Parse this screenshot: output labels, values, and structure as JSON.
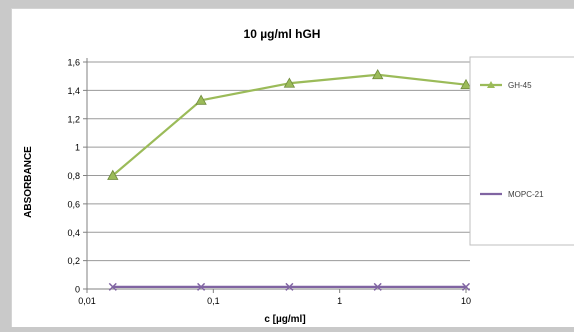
{
  "chart_data": {
    "type": "line",
    "title": "10 µg/ml hGH",
    "xlabel": "c [µg/ml]",
    "ylabel": "ABSORBANCE",
    "x_scale": "log",
    "xlim": [
      0.01,
      10
    ],
    "ylim": [
      0,
      1.6
    ],
    "x_ticks": [
      "0,01",
      "0,1",
      "1",
      "10"
    ],
    "y_ticks": [
      "0",
      "0,2",
      "0,4",
      "0,6",
      "0,8",
      "1",
      "1,2",
      "1,4",
      "1,6"
    ],
    "y_tick_values": [
      0,
      0.2,
      0.4,
      0.6,
      0.8,
      1.0,
      1.2,
      1.4,
      1.6
    ],
    "x_tick_values": [
      0.01,
      0.1,
      1,
      10
    ],
    "grid": true,
    "legend_position": "right",
    "series": [
      {
        "name": "GH-45",
        "color": "#9bbb59",
        "marker": "triangle",
        "x": [
          0.016,
          0.08,
          0.4,
          2,
          10
        ],
        "y": [
          0.8,
          1.33,
          1.45,
          1.51,
          1.44
        ]
      },
      {
        "name": "MOPC-21",
        "color": "#8064a2",
        "marker": "x",
        "x": [
          0.016,
          0.08,
          0.4,
          2,
          10
        ],
        "y": [
          0.015,
          0.015,
          0.015,
          0.015,
          0.015
        ]
      }
    ]
  }
}
